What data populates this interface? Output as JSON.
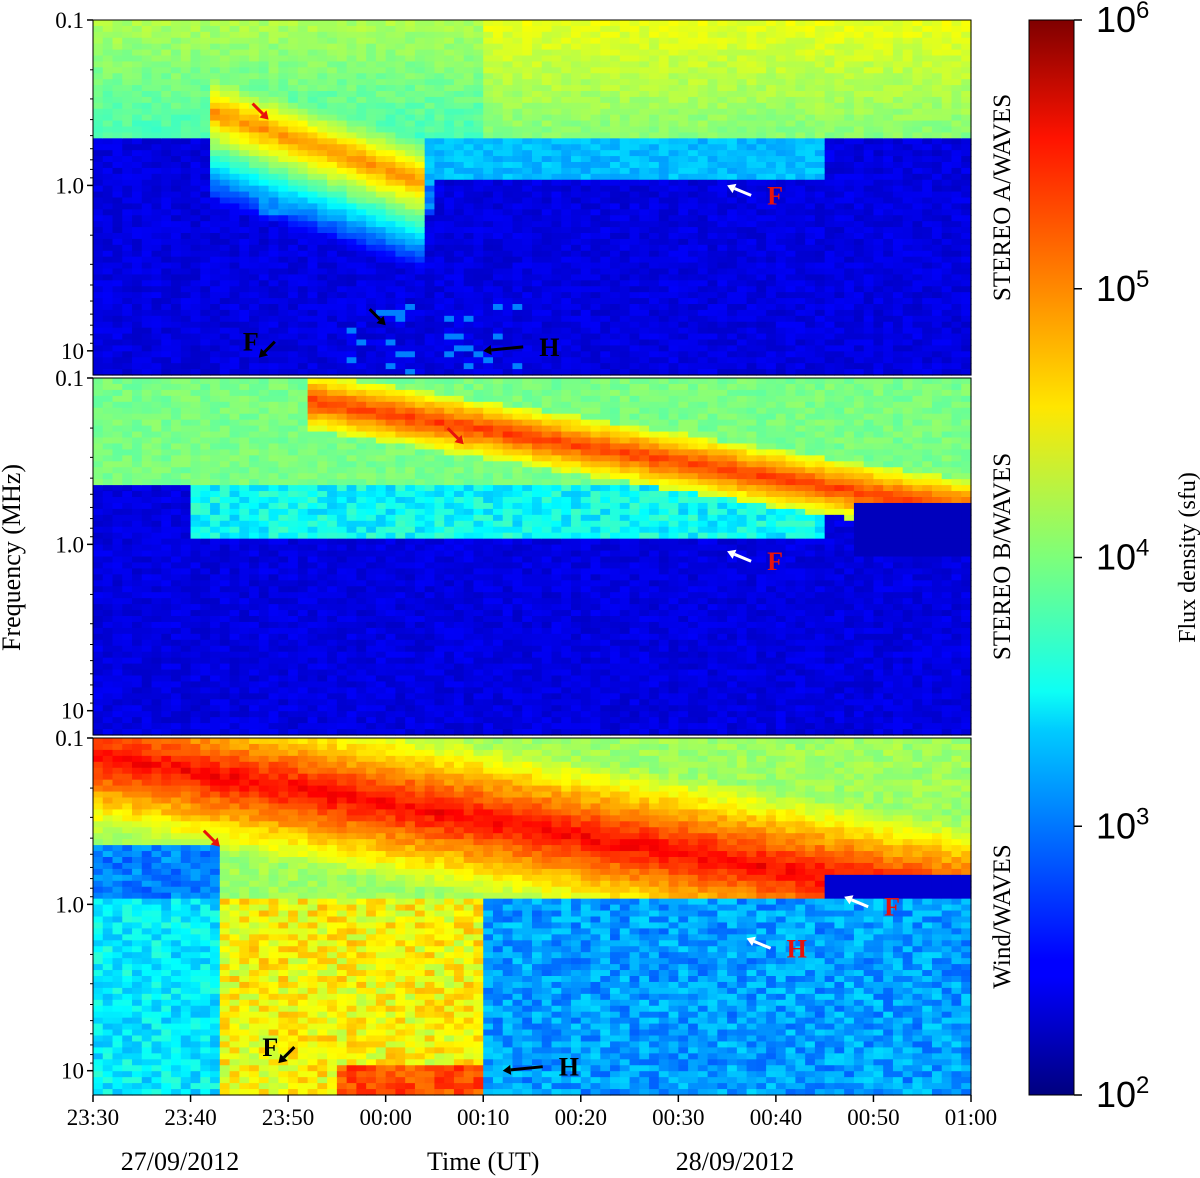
{
  "chart_data": {
    "type": "heatmap",
    "xlabel": "Time (UT)",
    "ylabel": "Frequency (MHz)",
    "x_ticks": [
      "23:30",
      "23:40",
      "23:50",
      "00:00",
      "00:10",
      "00:20",
      "00:30",
      "00:40",
      "00:50",
      "01:00"
    ],
    "x_range": [
      "23:30",
      "01:00"
    ],
    "dates": [
      "27/09/2012",
      "28/09/2012"
    ],
    "y_scale": "log",
    "y_ticks": [
      "0.1",
      "1.0",
      "10"
    ],
    "y_range_MHz": [
      0.1,
      14
    ],
    "y_inverted": true,
    "panels": [
      {
        "label": "STEREO A/WAVES",
        "annotations": [
          {
            "text": "",
            "color": "#e8120c",
            "kind": "arrow",
            "at_time": "23:48",
            "at_freq_MHz": 0.4
          },
          {
            "text": "F",
            "color": "#e8120c",
            "kind": "arrow+label",
            "at_time": "00:35",
            "at_freq_MHz": 1.0
          },
          {
            "text": "",
            "color": "#000000",
            "kind": "arrow",
            "at_time": "00:00",
            "at_freq_MHz": 7
          },
          {
            "text": "H",
            "color": "#000000",
            "kind": "arrow+label",
            "at_time": "00:10",
            "at_freq_MHz": 10
          },
          {
            "text": "F",
            "color": "#000000",
            "kind": "arrow+label",
            "at_time": "23:47",
            "at_freq_MHz": 11
          }
        ]
      },
      {
        "label": "STEREO B/WAVES",
        "annotations": [
          {
            "text": "",
            "color": "#e8120c",
            "kind": "arrow",
            "at_time": "00:08",
            "at_freq_MHz": 0.25
          },
          {
            "text": "F",
            "color": "#e8120c",
            "kind": "arrow+label",
            "at_time": "00:35",
            "at_freq_MHz": 1.1
          }
        ]
      },
      {
        "label": "Wind/WAVES",
        "annotations": [
          {
            "text": "",
            "color": "#e8120c",
            "kind": "arrow",
            "at_time": "23:43",
            "at_freq_MHz": 0.45
          },
          {
            "text": "F",
            "color": "#e8120c",
            "kind": "arrow+label",
            "at_time": "00:47",
            "at_freq_MHz": 0.9
          },
          {
            "text": "H",
            "color": "#e8120c",
            "kind": "arrow+label",
            "at_time": "00:37",
            "at_freq_MHz": 1.6
          },
          {
            "text": "F",
            "color": "#000000",
            "kind": "arrow+label",
            "at_time": "23:49",
            "at_freq_MHz": 9
          },
          {
            "text": "H",
            "color": "#000000",
            "kind": "arrow+label",
            "at_time": "00:12",
            "at_freq_MHz": 10
          }
        ]
      }
    ],
    "colorbar": {
      "label": "Flux density (sfu)",
      "scale": "log",
      "range": [
        100,
        1000000
      ],
      "ticks": [
        {
          "base": "10",
          "exp": "2"
        },
        {
          "base": "10",
          "exp": "3"
        },
        {
          "base": "10",
          "exp": "4"
        },
        {
          "base": "10",
          "exp": "5"
        },
        {
          "base": "10",
          "exp": "6"
        }
      ],
      "colormap": "jet"
    }
  }
}
